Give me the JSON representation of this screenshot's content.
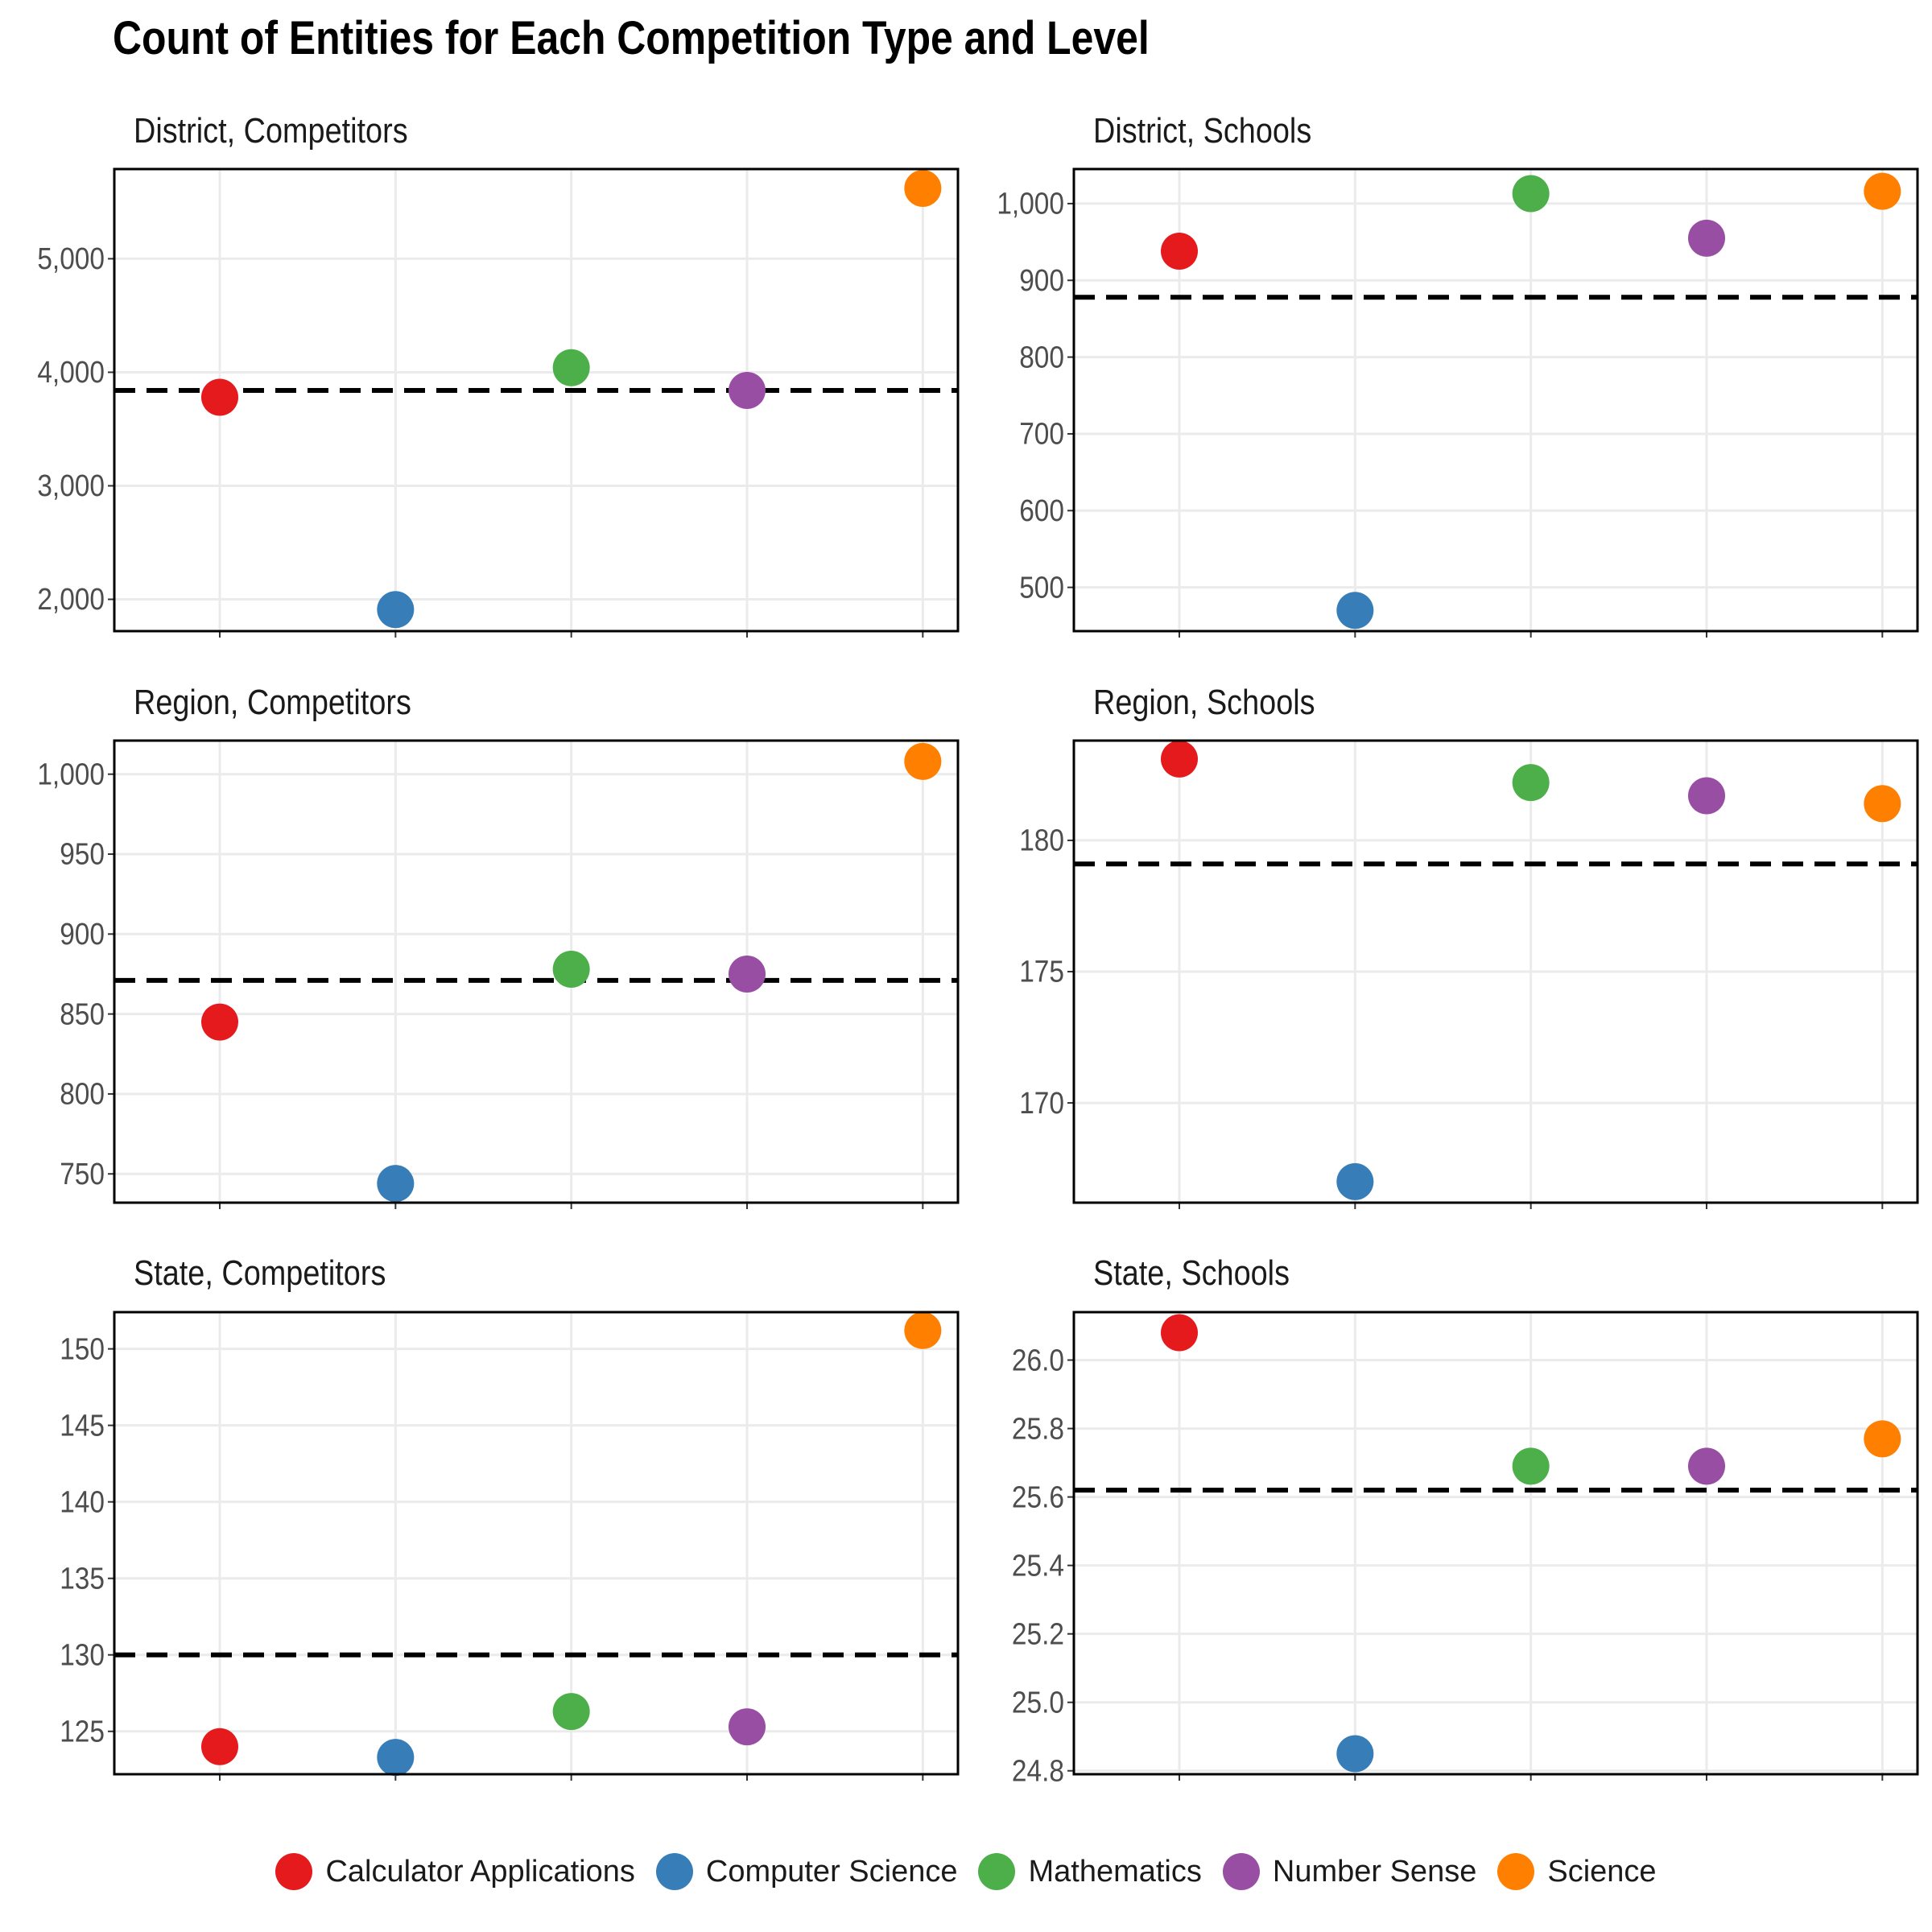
{
  "title": "Count of Entities for Each Competition Type and Level",
  "chart_data": {
    "type": "scatter",
    "title": "Count of Entities for Each Competition Type and Level",
    "categories": [
      "Calculator Applications",
      "Computer Science",
      "Mathematics",
      "Number Sense",
      "Science"
    ],
    "colors": {
      "Calculator Applications": "#e41a1c",
      "Computer Science": "#377eb8",
      "Mathematics": "#4daf4a",
      "Number Sense": "#984ea3",
      "Science": "#ff7f00"
    },
    "legend_position": "bottom",
    "grid": true,
    "reference_line": "dashed",
    "panels": [
      {
        "title": "District, Competitors",
        "ylim": [
          1720,
          5790
        ],
        "yticks": [
          2000,
          3000,
          4000,
          5000
        ],
        "tick_labels": [
          "2,000",
          "3,000",
          "4,000",
          "5,000"
        ],
        "values": [
          3780,
          1910,
          4040,
          3840,
          5620
        ],
        "reference": 3840
      },
      {
        "title": "District, Schools",
        "ylim": [
          443,
          1045
        ],
        "yticks": [
          500,
          600,
          700,
          800,
          900,
          1000
        ],
        "tick_labels": [
          "500",
          "600",
          "700",
          "800",
          "900",
          "1,000"
        ],
        "values": [
          938,
          470,
          1013,
          955,
          1016
        ],
        "reference": 878
      },
      {
        "title": "Region, Competitors",
        "ylim": [
          732,
          1021
        ],
        "yticks": [
          750,
          800,
          850,
          900,
          950,
          1000
        ],
        "tick_labels": [
          "750",
          "800",
          "850",
          "900",
          "950",
          "1,000"
        ],
        "values": [
          845,
          744,
          878,
          875,
          1008
        ],
        "reference": 871
      },
      {
        "title": "Region, Schools",
        "ylim": [
          166.2,
          183.8
        ],
        "yticks": [
          170,
          175,
          180
        ],
        "tick_labels": [
          "170",
          "175",
          "180"
        ],
        "values": [
          183.1,
          167.0,
          182.2,
          181.7,
          181.4
        ],
        "reference": 179.1
      },
      {
        "title": "State, Competitors",
        "ylim": [
          122.2,
          152.4
        ],
        "yticks": [
          125,
          130,
          135,
          140,
          145,
          150
        ],
        "tick_labels": [
          "125",
          "130",
          "135",
          "140",
          "145",
          "150"
        ],
        "values": [
          124,
          123.3,
          126.3,
          125.3,
          151.2
        ],
        "reference": 130
      },
      {
        "title": "State, Schools",
        "ylim": [
          24.79,
          26.14
        ],
        "yticks": [
          24.8,
          25.0,
          25.2,
          25.4,
          25.6,
          25.8,
          26.0
        ],
        "tick_labels": [
          "24.8",
          "25.0",
          "25.2",
          "25.4",
          "25.6",
          "25.8",
          "26.0"
        ],
        "values": [
          26.08,
          24.85,
          25.69,
          25.69,
          25.77
        ],
        "reference": 25.62
      }
    ]
  }
}
